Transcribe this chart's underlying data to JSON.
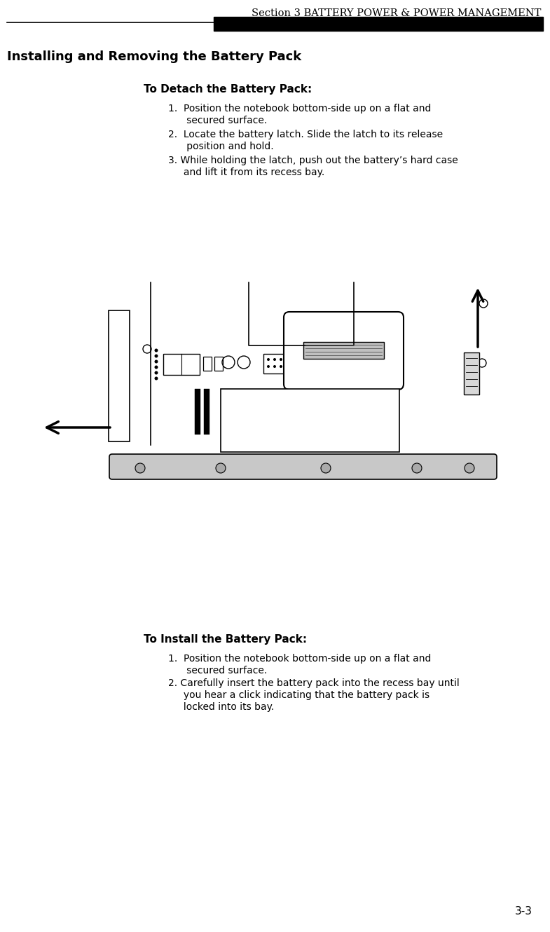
{
  "header_text": "Section 3 BATTERY POWER & POWER MANAGEMENT",
  "section_title": "Installing and Removing the Battery Pack",
  "detach_title": "To Detach the Battery Pack:",
  "detach_lines": [
    [
      "1.  Position the notebook bottom-side up on a flat and",
      "      secured surface."
    ],
    [
      "2.  Locate the battery latch. Slide the latch to its release",
      "      position and hold."
    ],
    [
      "3. While holding the latch, push out the battery’s hard case",
      "     and lift it from its recess bay."
    ]
  ],
  "install_title": "To Install the Battery Pack:",
  "install_lines": [
    [
      "1.  Position the notebook bottom-side up on a flat and",
      "      secured surface."
    ],
    [
      "2. Carefully insert the battery pack into the recess bay until",
      "     you hear a click indicating that the battery pack is",
      "     locked into its bay."
    ]
  ],
  "page_number": "3-3",
  "bg_color": "#ffffff",
  "text_color": "#000000"
}
